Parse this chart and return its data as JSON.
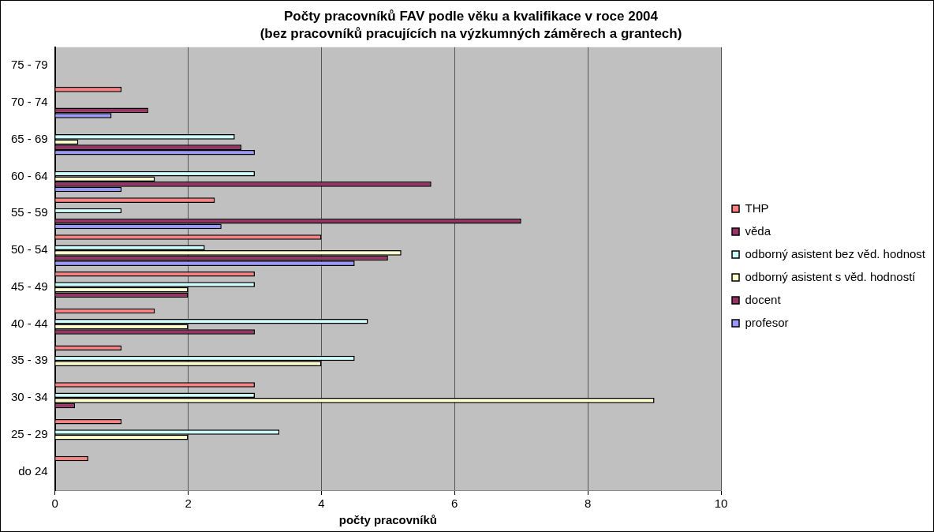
{
  "chart_data": {
    "type": "bar",
    "orientation": "horizontal",
    "title": "Počty pracovníků FAV podle věku a kvalifikace v roce 2004",
    "subtitle": "(bez pracovníků pracujících na výzkumných záměrech a grantech)",
    "xlabel": "počty pracovníků",
    "categories": [
      "75 - 79",
      "70 - 74",
      "65 - 69",
      "60 - 64",
      "55 - 59",
      "50 - 54",
      "45 - 49",
      "40 - 44",
      "35 - 39",
      "30 - 34",
      "25 - 29",
      "do 24"
    ],
    "series": [
      {
        "name": "THP",
        "color": "#ff8080",
        "values": [
          null,
          1,
          null,
          null,
          2.4,
          4,
          3,
          1.5,
          1,
          3,
          1,
          0.5
        ]
      },
      {
        "name": "věda",
        "color": "#993366",
        "values": [
          null,
          null,
          null,
          null,
          null,
          null,
          null,
          null,
          null,
          null,
          null,
          null
        ]
      },
      {
        "name": "odborný asistent bez věd. hodnost",
        "color": "#ccffff",
        "values": [
          null,
          null,
          2.7,
          3,
          1,
          2.25,
          3,
          4.7,
          4.5,
          3,
          3.37,
          null
        ]
      },
      {
        "name": "odborný asistent s věd. hodností",
        "color": "#ffffcc",
        "values": [
          null,
          null,
          0.35,
          1.5,
          null,
          5.2,
          2,
          2,
          4,
          9,
          2,
          null
        ]
      },
      {
        "name": "docent",
        "color": "#993366",
        "values": [
          null,
          1.4,
          2.8,
          5.65,
          7,
          5,
          2,
          3,
          null,
          0.3,
          null,
          null
        ]
      },
      {
        "name": "profesor",
        "color": "#9999ff",
        "values": [
          null,
          0.85,
          3,
          1,
          2.5,
          4.5,
          null,
          null,
          null,
          null,
          null,
          null
        ]
      }
    ],
    "xlim": [
      0,
      10
    ],
    "xticks": [
      0,
      2,
      4,
      6,
      8,
      10
    ],
    "grid": "x",
    "legend": "right"
  }
}
